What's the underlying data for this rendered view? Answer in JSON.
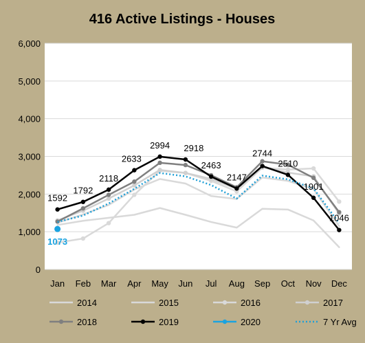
{
  "colors": {
    "frame": "#bcaf8c",
    "plot_background": "#ffffff",
    "gridline": "#d9d9d9",
    "text": "#000000",
    "highlight_2020": "#1aa3e0"
  },
  "chart_data": {
    "type": "line",
    "title": "416 Active Listings - Houses",
    "xlabel": "",
    "ylabel": "",
    "ylim": [
      0,
      6000
    ],
    "yticks": [
      0,
      1000,
      2000,
      3000,
      4000,
      5000,
      6000
    ],
    "ytick_labels": [
      "0",
      "1,000",
      "2,000",
      "3,000",
      "4,000",
      "5,000",
      "6,000"
    ],
    "grid": true,
    "legend_position": "bottom",
    "categories": [
      "Jan",
      "Feb",
      "Mar",
      "Apr",
      "May",
      "Jun",
      "Jul",
      "Aug",
      "Sep",
      "Oct",
      "Nov",
      "Dec"
    ],
    "series": [
      {
        "name": "2014",
        "color": "#d9d9d9",
        "style": "solid",
        "markers": false,
        "values": [
          1180,
          1290,
          1370,
          1450,
          1630,
          1450,
          1260,
          1110,
          1610,
          1590,
          1300,
          590
        ]
      },
      {
        "name": "2015",
        "color": "#d9d9d9",
        "style": "solid",
        "markers": false,
        "values": [
          1240,
          1460,
          1710,
          2120,
          2400,
          2280,
          1950,
          1870,
          2440,
          2350,
          2130,
          1150
        ]
      },
      {
        "name": "2016",
        "color": "#d9d9d9",
        "style": "solid",
        "markers": true,
        "values": [
          710,
          820,
          1230,
          1980,
          2620,
          2560,
          2350,
          2070,
          2700,
          2650,
          2680,
          1800
        ]
      },
      {
        "name": "2017",
        "color": "#d0d0d0",
        "style": "solid",
        "markers": true,
        "values": [
          1300,
          1560,
          1880,
          2230,
          2640,
          2560,
          2400,
          2140,
          2710,
          2570,
          2470,
          1480
        ]
      },
      {
        "name": "2018",
        "color": "#7f7f7f",
        "style": "solid",
        "markers": true,
        "values": [
          1270,
          1620,
          1980,
          2330,
          2830,
          2770,
          2500,
          2180,
          2870,
          2780,
          2430,
          1520
        ]
      },
      {
        "name": "2019",
        "color": "#000000",
        "style": "solid",
        "markers": true,
        "values": [
          1592,
          1792,
          2118,
          2633,
          2994,
          2918,
          2463,
          2147,
          2744,
          2510,
          1901,
          1046
        ],
        "data_labels": [
          "1592",
          "1792",
          "2118",
          "2633",
          "2994",
          "2918",
          "2463",
          "2147",
          "2744",
          "2510",
          "1901",
          "1046"
        ]
      },
      {
        "name": "2020",
        "color": "#1aa3e0",
        "style": "solid",
        "markers": true,
        "values": [
          1073,
          null,
          null,
          null,
          null,
          null,
          null,
          null,
          null,
          null,
          null,
          null
        ],
        "data_labels": [
          "1073"
        ]
      },
      {
        "name": "7 Yr Avg",
        "color": "#1f9fd6",
        "style": "dotted",
        "markers": false,
        "values": [
          1260,
          1430,
          1750,
          2140,
          2560,
          2470,
          2240,
          1880,
          2490,
          2390,
          2150,
          1230
        ]
      }
    ]
  }
}
